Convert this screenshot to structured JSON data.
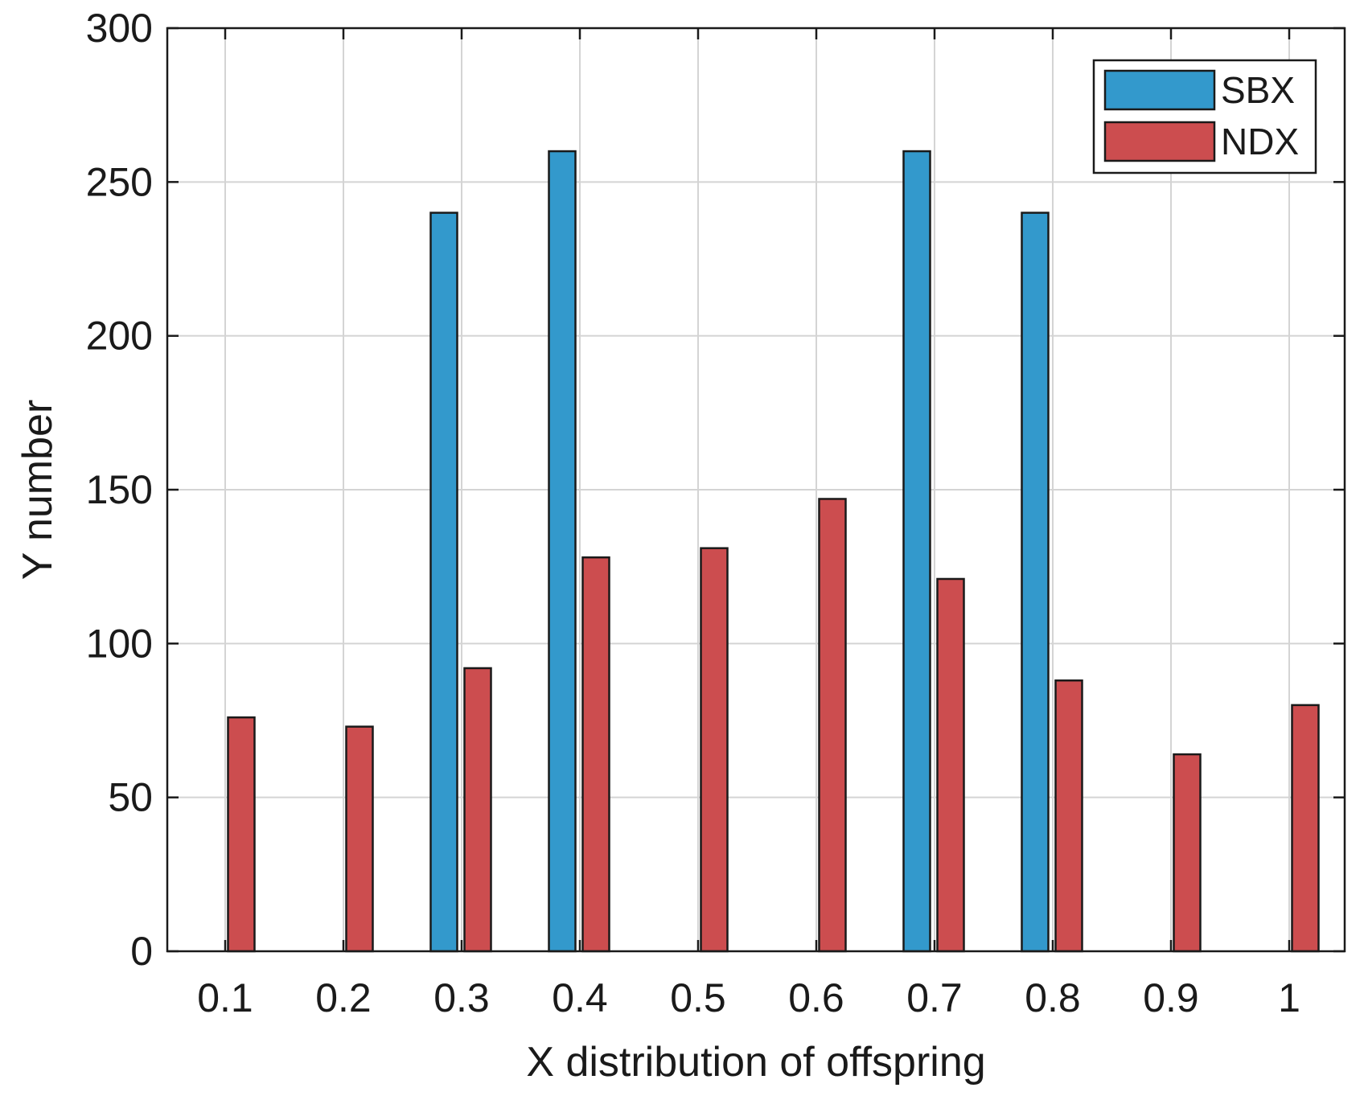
{
  "chart_data": {
    "type": "bar",
    "title": "",
    "xlabel": "X distribution of offspring",
    "ylabel": "Y number",
    "categories": [
      "0.1",
      "0.2",
      "0.3",
      "0.4",
      "0.5",
      "0.6",
      "0.7",
      "0.8",
      "0.9",
      "1"
    ],
    "series": [
      {
        "name": "SBX",
        "color": "#3399cc",
        "values": [
          0,
          0,
          240,
          260,
          0,
          0,
          260,
          240,
          0,
          0
        ]
      },
      {
        "name": "NDX",
        "color": "#cc4d4f",
        "values": [
          76,
          73,
          92,
          128,
          131,
          147,
          121,
          88,
          64,
          80
        ]
      }
    ],
    "ylim": [
      0,
      300
    ],
    "yticks": [
      "0",
      "50",
      "100",
      "150",
      "200",
      "250",
      "300"
    ],
    "grid": true,
    "legend_position": "top-right"
  }
}
